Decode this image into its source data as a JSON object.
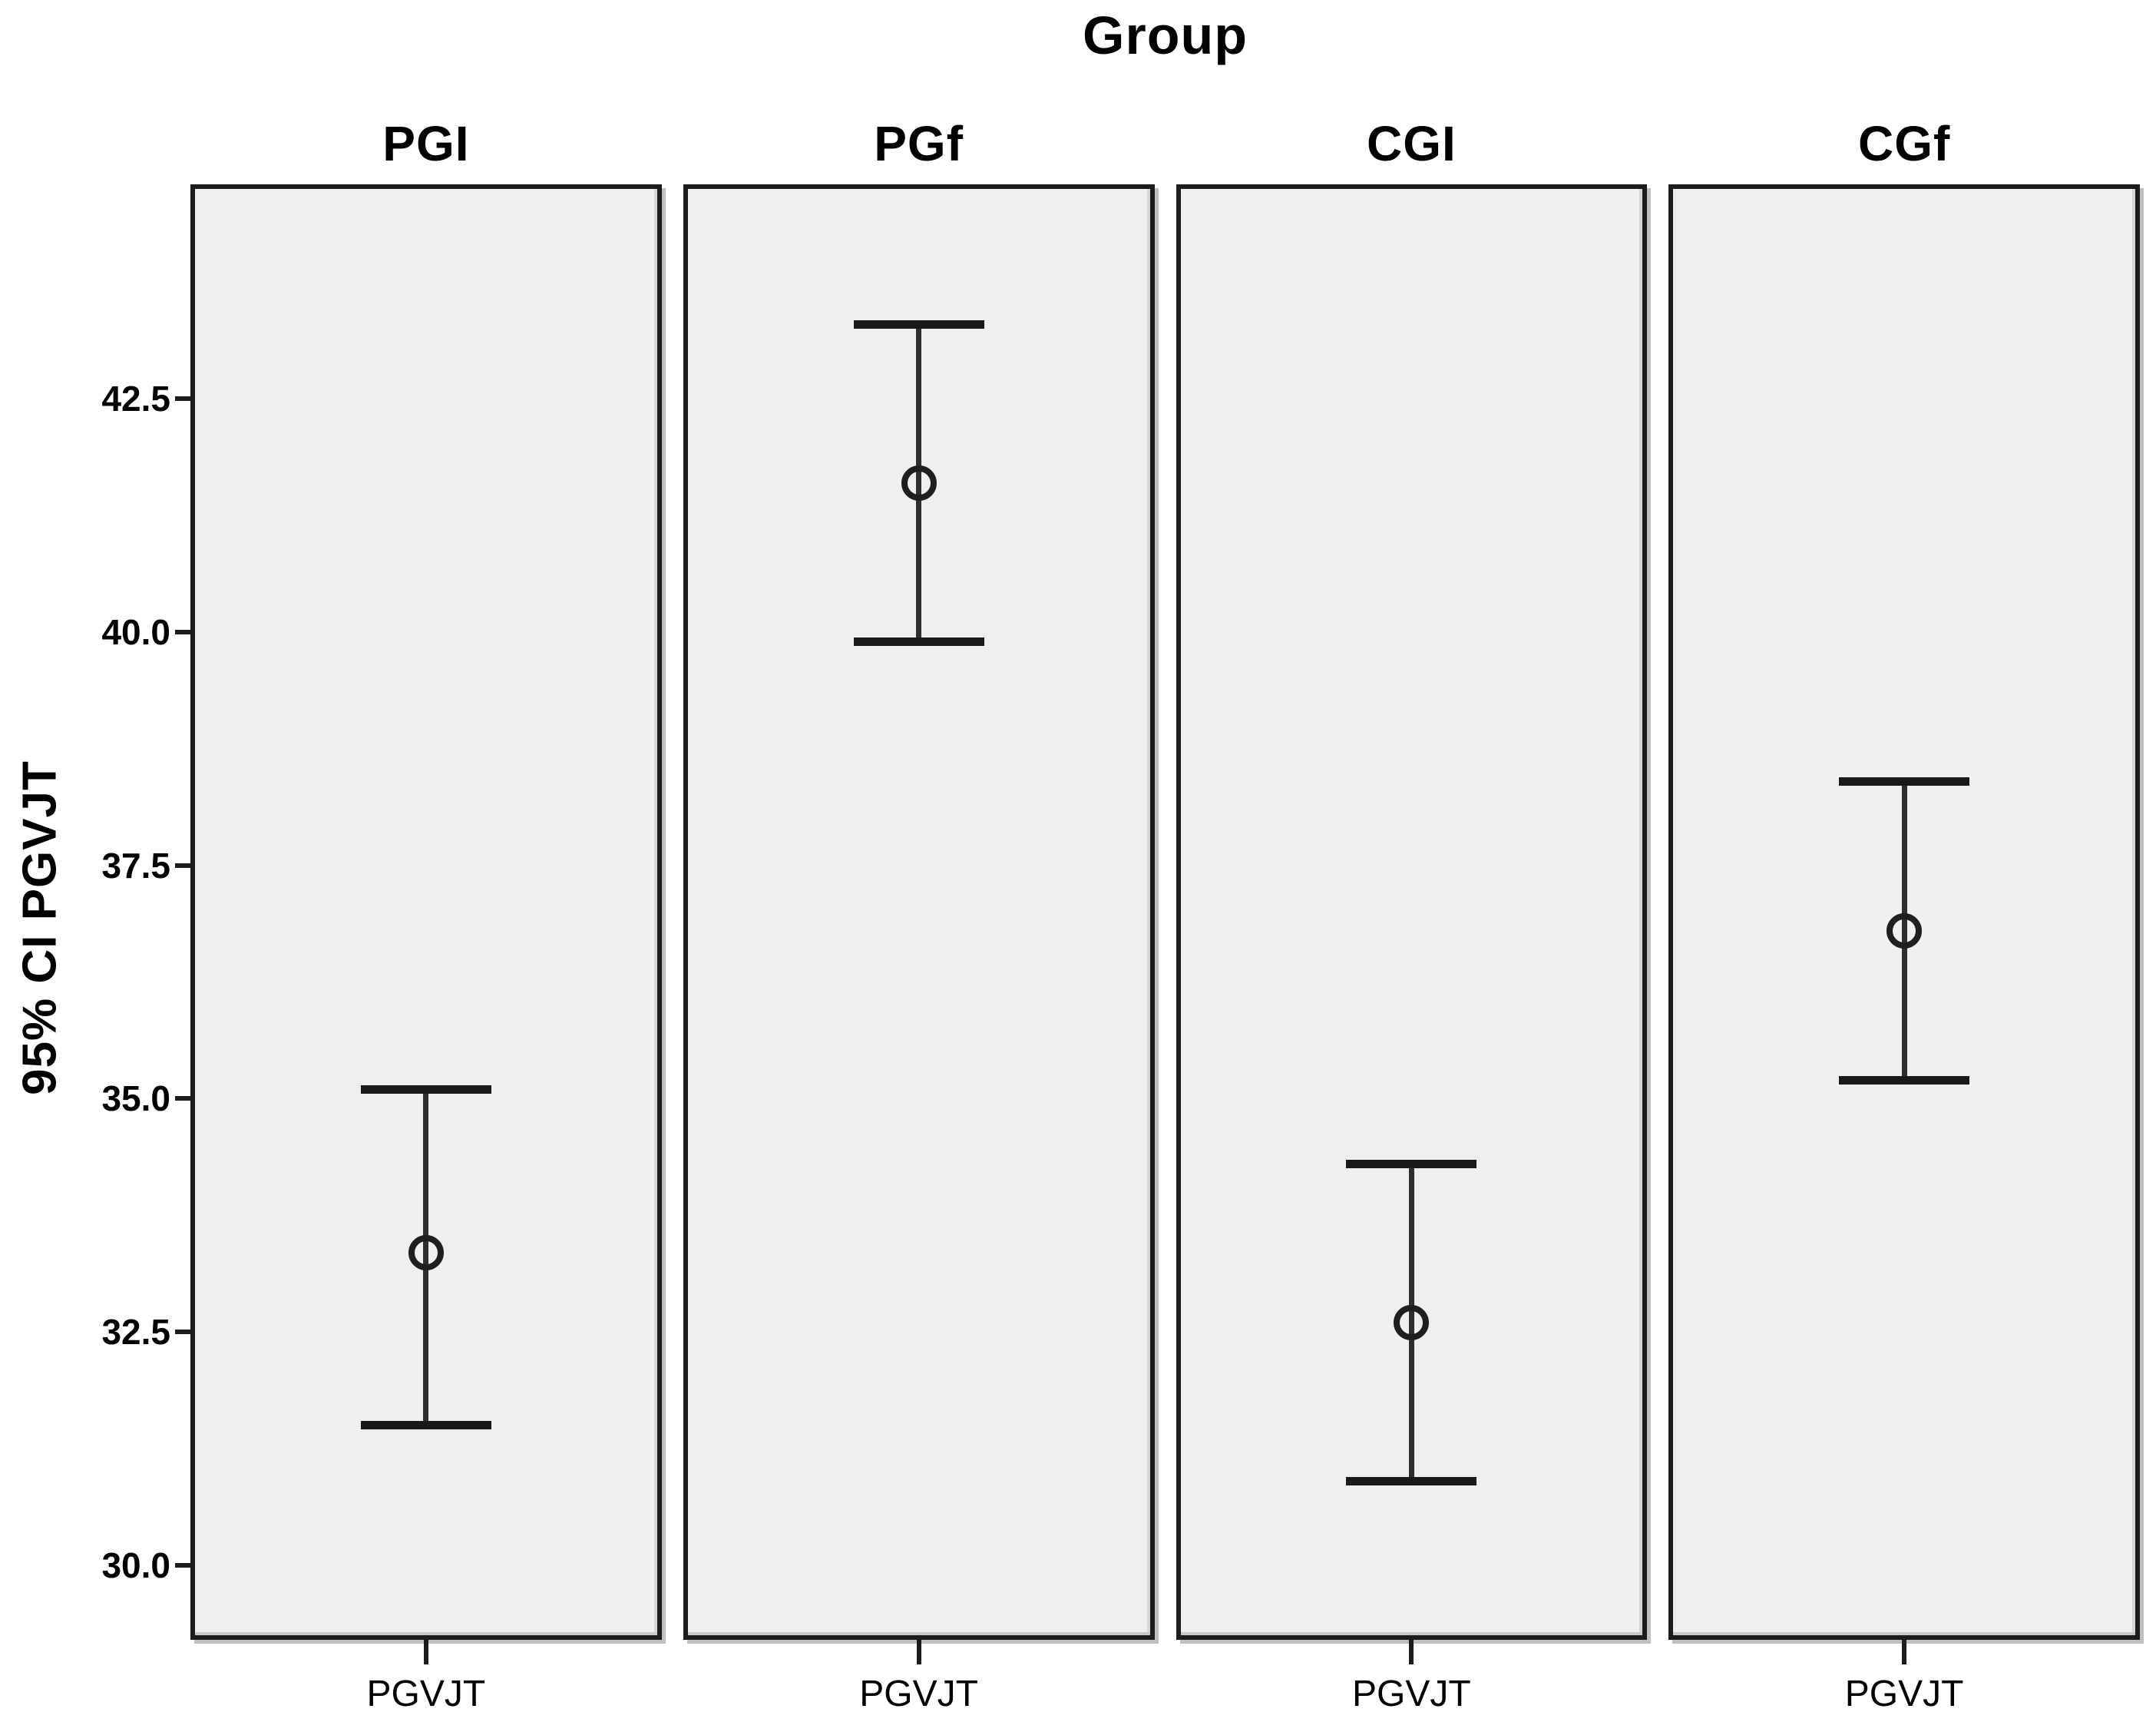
{
  "chart_data": {
    "type": "error-bar",
    "title": "Group",
    "ylabel": "95% CI PGVJT",
    "legend_position": "none",
    "grid": false,
    "marker": "open-circle",
    "panel_bg": "#efefef",
    "panel_border_color": "#1c1c1c",
    "line_color": "#2e2e2e",
    "panels": [
      {
        "group": "PGI",
        "x_label": "PGVJT",
        "mean": 33.35,
        "ci_low": 31.5,
        "ci_high": 35.1
      },
      {
        "group": "PGf",
        "x_label": "PGVJT",
        "mean": 41.6,
        "ci_low": 39.9,
        "ci_high": 43.3
      },
      {
        "group": "CGI",
        "x_label": "PGVJT",
        "mean": 32.6,
        "ci_low": 30.9,
        "ci_high": 34.3
      },
      {
        "group": "CGf",
        "x_label": "PGVJT",
        "mean": 36.8,
        "ci_low": 35.2,
        "ci_high": 38.4
      }
    ],
    "y_axis": {
      "min": 29.2,
      "max": 44.8,
      "tick_values": [
        42.5,
        40.0,
        37.5,
        35.0,
        32.5,
        30.0
      ],
      "tick_labels": [
        "42.5",
        "40.0",
        "37.5",
        "35.0",
        "32.5",
        "30.0"
      ]
    }
  }
}
